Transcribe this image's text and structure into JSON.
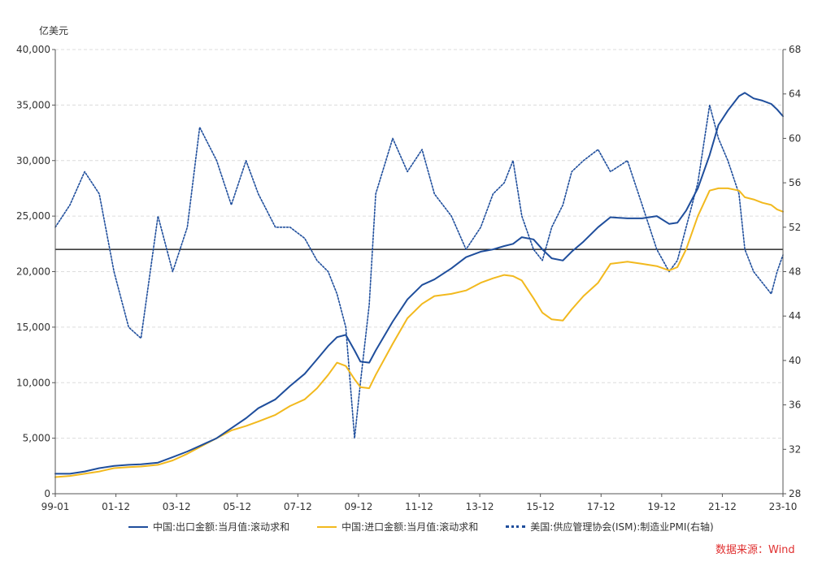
{
  "chart_data": {
    "type": "line",
    "unit_left": "亿美元",
    "x_ticks": [
      "99-01",
      "01-12",
      "03-12",
      "05-12",
      "07-12",
      "09-12",
      "11-12",
      "13-12",
      "15-12",
      "17-12",
      "19-12",
      "21-12",
      "23-10"
    ],
    "y_left": {
      "ylim": [
        0,
        40000
      ],
      "ticks": [
        "0",
        "5,000",
        "10,000",
        "15,000",
        "20,000",
        "25,000",
        "30,000",
        "35,000",
        "40,000"
      ]
    },
    "y_right": {
      "ylim": [
        28,
        68
      ],
      "ticks": [
        "28",
        "32",
        "36",
        "40",
        "44",
        "48",
        "52",
        "56",
        "60",
        "64",
        "68"
      ]
    },
    "reference_line": 50,
    "x": [
      1999.0,
      1999.5,
      2000.0,
      2000.5,
      2001.0,
      2001.5,
      2001.92,
      2002.5,
      2003.0,
      2003.5,
      2003.92,
      2004.5,
      2005.0,
      2005.5,
      2005.92,
      2006.5,
      2007.0,
      2007.5,
      2007.92,
      2008.3,
      2008.6,
      2008.9,
      2009.2,
      2009.4,
      2009.7,
      2009.92,
      2010.5,
      2011.0,
      2011.5,
      2011.92,
      2012.5,
      2013.0,
      2013.5,
      2013.92,
      2014.3,
      2014.6,
      2014.9,
      2015.3,
      2015.6,
      2015.92,
      2016.3,
      2016.6,
      2017.0,
      2017.5,
      2017.92,
      2018.5,
      2019.0,
      2019.5,
      2019.92,
      2020.2,
      2020.5,
      2020.9,
      2021.3,
      2021.6,
      2021.92,
      2022.3,
      2022.5,
      2022.8,
      2023.1,
      2023.4,
      2023.6,
      2023.8
    ],
    "series": [
      {
        "name": "中国:出口金额:当月值:滚动求和",
        "axis": "left",
        "color": "#1f4e9c",
        "style": "solid",
        "values": [
          1800,
          1800,
          2000,
          2300,
          2500,
          2600,
          2650,
          2800,
          3300,
          3800,
          4300,
          5000,
          5900,
          6800,
          7700,
          8500,
          9700,
          10800,
          12100,
          13300,
          14100,
          14300,
          12900,
          11900,
          11800,
          12900,
          15500,
          17500,
          18800,
          19300,
          20300,
          21300,
          21800,
          22000,
          22300,
          22500,
          23100,
          22900,
          22000,
          21200,
          21000,
          21800,
          22700,
          24000,
          24900,
          24800,
          24800,
          25000,
          24300,
          24400,
          25500,
          27500,
          30500,
          33200,
          34500,
          35800,
          36100,
          35600,
          35400,
          35100,
          34600,
          34000
        ]
      },
      {
        "name": "中国:进口金额:当月值:滚动求和",
        "axis": "left",
        "color": "#f2b91e",
        "style": "solid",
        "values": [
          1500,
          1600,
          1800,
          2000,
          2300,
          2400,
          2450,
          2600,
          3000,
          3600,
          4200,
          5000,
          5700,
          6100,
          6500,
          7100,
          7900,
          8500,
          9500,
          10700,
          11800,
          11500,
          10300,
          9600,
          9500,
          10700,
          13500,
          15800,
          17100,
          17800,
          18000,
          18300,
          19000,
          19400,
          19700,
          19600,
          19200,
          17600,
          16300,
          15700,
          15600,
          16600,
          17800,
          19000,
          20700,
          20900,
          20700,
          20500,
          20100,
          20400,
          22000,
          25000,
          27300,
          27500,
          27500,
          27300,
          26700,
          26500,
          26200,
          26000,
          25600,
          25400
        ]
      },
      {
        "name": "美国:供应管理协会(ISM):制造业PMI(右轴)",
        "axis": "right",
        "color": "#1f4e9c",
        "style": "dotted",
        "values": [
          52,
          54,
          57,
          55,
          48,
          43,
          42,
          53,
          48,
          52,
          61,
          58,
          54,
          58,
          55,
          52,
          52,
          51,
          49,
          48,
          46,
          43,
          33,
          38,
          45,
          55,
          60,
          57,
          59,
          55,
          53,
          50,
          52,
          55,
          56,
          58,
          53,
          50,
          49,
          52,
          54,
          57,
          58,
          59,
          57,
          58,
          54,
          50,
          48,
          49,
          52,
          56,
          63,
          60,
          58,
          55,
          50,
          48,
          47,
          46,
          48,
          49.5
        ]
      }
    ]
  },
  "source": "数据来源：Wind"
}
